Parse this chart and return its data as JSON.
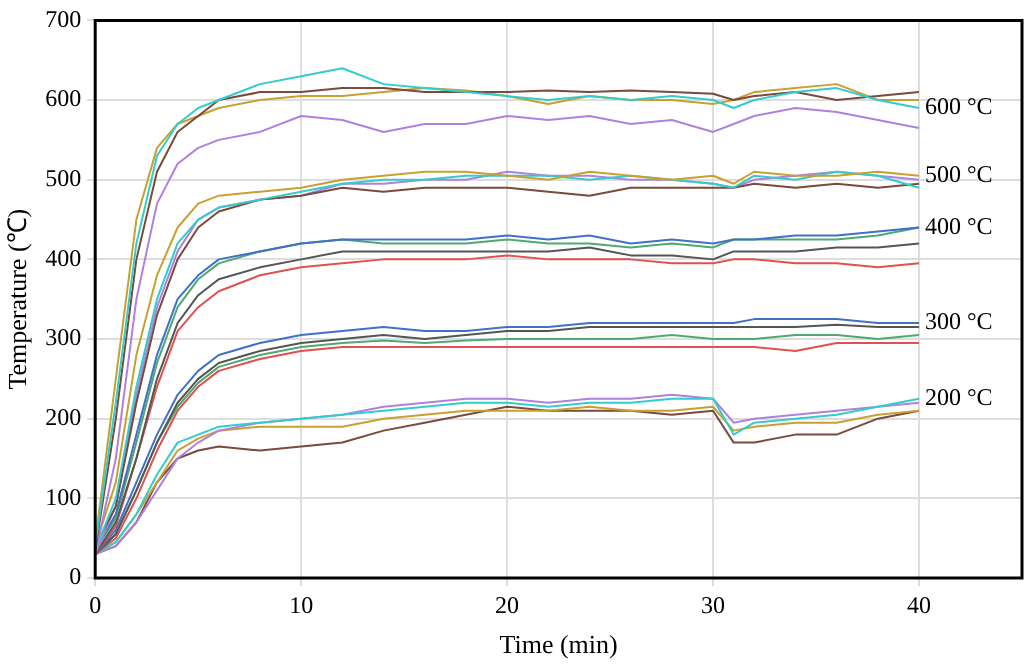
{
  "chart_data": {
    "type": "line",
    "xlabel": "Time (min)",
    "ylabel": "Temperature (℃)",
    "xlim": [
      0,
      45
    ],
    "xticks": [
      0,
      10,
      20,
      30,
      40
    ],
    "ylim": [
      0,
      700
    ],
    "yticks": [
      0,
      100,
      200,
      300,
      400,
      500,
      600,
      700
    ],
    "grid": true,
    "legend": false,
    "marker": "none",
    "line_style": "solid",
    "x": [
      0,
      1,
      2,
      3,
      4,
      5,
      6,
      8,
      10,
      12,
      14,
      16,
      18,
      20,
      22,
      24,
      26,
      28,
      30,
      31,
      32,
      34,
      36,
      38,
      40
    ],
    "series": [
      {
        "color": "#33cccc",
        "values": [
          40,
          220,
          420,
          530,
          570,
          590,
          600,
          620,
          630,
          640,
          620,
          615,
          610,
          605,
          600,
          605,
          600,
          605,
          600,
          590,
          600,
          610,
          615,
          600,
          590
        ]
      },
      {
        "color": "#7a4a3a",
        "values": [
          35,
          200,
          400,
          510,
          560,
          580,
          600,
          610,
          610,
          615,
          615,
          610,
          610,
          610,
          612,
          610,
          612,
          610,
          608,
          600,
          605,
          610,
          600,
          605,
          610
        ]
      },
      {
        "color": "#c8a030",
        "values": [
          45,
          250,
          450,
          540,
          570,
          580,
          590,
          600,
          605,
          605,
          610,
          615,
          612,
          605,
          595,
          605,
          600,
          600,
          595,
          600,
          610,
          615,
          620,
          600,
          600
        ]
      },
      {
        "color": "#b080e0",
        "values": [
          30,
          150,
          350,
          470,
          520,
          540,
          550,
          560,
          580,
          575,
          560,
          570,
          570,
          580,
          575,
          580,
          570,
          575,
          560,
          570,
          580,
          590,
          585,
          575,
          565
        ]
      },
      {
        "color": "#c8a030",
        "values": [
          40,
          120,
          280,
          380,
          440,
          470,
          480,
          485,
          490,
          500,
          505,
          510,
          510,
          505,
          500,
          510,
          505,
          500,
          505,
          495,
          510,
          505,
          505,
          510,
          505
        ]
      },
      {
        "color": "#33cccc",
        "values": [
          35,
          100,
          240,
          350,
          420,
          450,
          465,
          475,
          485,
          495,
          500,
          500,
          505,
          505,
          505,
          500,
          505,
          500,
          495,
          490,
          505,
          500,
          510,
          505,
          490
        ]
      },
      {
        "color": "#7a4a3a",
        "values": [
          40,
          90,
          220,
          330,
          400,
          440,
          460,
          475,
          480,
          490,
          485,
          490,
          490,
          490,
          485,
          480,
          490,
          490,
          490,
          490,
          495,
          490,
          495,
          490,
          495
        ]
      },
      {
        "color": "#b080e0",
        "values": [
          30,
          90,
          230,
          340,
          410,
          450,
          465,
          475,
          480,
          495,
          495,
          500,
          500,
          510,
          505,
          505,
          500,
          500,
          495,
          490,
          500,
          505,
          510,
          505,
          500
        ]
      },
      {
        "color": "#4070c8",
        "values": [
          35,
          80,
          180,
          280,
          350,
          380,
          400,
          410,
          420,
          425,
          425,
          425,
          425,
          430,
          425,
          430,
          420,
          425,
          420,
          425,
          425,
          430,
          430,
          435,
          440
        ]
      },
      {
        "color": "#50a870",
        "values": [
          35,
          75,
          170,
          270,
          340,
          375,
          395,
          410,
          420,
          425,
          420,
          420,
          420,
          425,
          420,
          420,
          415,
          420,
          415,
          425,
          425,
          425,
          425,
          430,
          440
        ]
      },
      {
        "color": "#555555",
        "values": [
          30,
          70,
          150,
          250,
          320,
          355,
          375,
          390,
          400,
          410,
          410,
          410,
          410,
          410,
          410,
          415,
          405,
          405,
          400,
          410,
          410,
          410,
          415,
          415,
          420
        ]
      },
      {
        "color": "#e05050",
        "values": [
          30,
          65,
          150,
          240,
          310,
          340,
          360,
          380,
          390,
          395,
          400,
          400,
          400,
          405,
          400,
          400,
          400,
          395,
          395,
          400,
          400,
          395,
          395,
          390,
          395
        ]
      },
      {
        "color": "#4070c8",
        "values": [
          30,
          60,
          120,
          180,
          230,
          260,
          280,
          295,
          305,
          310,
          315,
          310,
          310,
          315,
          315,
          320,
          320,
          320,
          320,
          320,
          325,
          325,
          325,
          320,
          320
        ]
      },
      {
        "color": "#555555",
        "values": [
          30,
          55,
          110,
          170,
          220,
          250,
          270,
          285,
          295,
          300,
          305,
          300,
          305,
          310,
          310,
          315,
          315,
          315,
          315,
          315,
          315,
          315,
          318,
          315,
          315
        ]
      },
      {
        "color": "#50a870",
        "values": [
          30,
          55,
          110,
          170,
          215,
          245,
          265,
          280,
          290,
          295,
          298,
          295,
          298,
          300,
          300,
          300,
          300,
          305,
          300,
          300,
          300,
          305,
          305,
          300,
          305
        ]
      },
      {
        "color": "#e05050",
        "values": [
          30,
          50,
          100,
          160,
          210,
          240,
          260,
          275,
          285,
          290,
          290,
          290,
          290,
          290,
          290,
          290,
          290,
          290,
          290,
          290,
          290,
          285,
          295,
          295,
          295
        ]
      },
      {
        "color": "#33cccc",
        "values": [
          30,
          45,
          80,
          130,
          170,
          180,
          190,
          195,
          200,
          205,
          210,
          215,
          220,
          220,
          215,
          220,
          220,
          225,
          225,
          180,
          195,
          200,
          205,
          215,
          225
        ]
      },
      {
        "color": "#b080e0",
        "values": [
          30,
          40,
          70,
          110,
          150,
          170,
          185,
          195,
          200,
          205,
          215,
          220,
          225,
          225,
          220,
          225,
          225,
          230,
          225,
          195,
          200,
          205,
          210,
          215,
          220
        ]
      },
      {
        "color": "#c8a030",
        "values": [
          30,
          45,
          80,
          120,
          160,
          175,
          185,
          190,
          190,
          190,
          200,
          205,
          210,
          210,
          210,
          215,
          210,
          210,
          215,
          185,
          190,
          195,
          195,
          205,
          210
        ]
      },
      {
        "color": "#7a4a3a",
        "values": [
          30,
          40,
          70,
          120,
          150,
          160,
          165,
          160,
          165,
          170,
          185,
          195,
          205,
          215,
          210,
          210,
          210,
          205,
          210,
          170,
          170,
          180,
          180,
          200,
          210
        ]
      }
    ],
    "annotations": [
      "600 °C",
      "500 °C",
      "400 °C",
      "300 °C",
      "200 °C"
    ]
  }
}
